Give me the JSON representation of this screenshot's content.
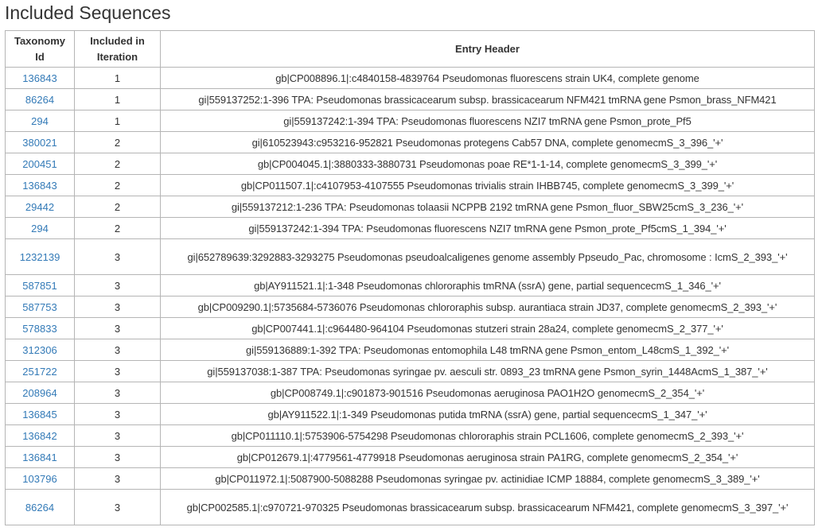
{
  "page": {
    "title": "Included Sequences"
  },
  "table": {
    "columns": {
      "taxonomy_line1": "Taxonomy",
      "taxonomy_line2": "Id",
      "included_line1": "Included in",
      "included_line2": "Iteration",
      "entry_header": "Entry Header"
    },
    "rows": [
      {
        "tax_id": "136843",
        "iteration": "1",
        "header": "gb|CP008896.1|:c4840158-4839764 Pseudomonas fluorescens strain UK4, complete genome"
      },
      {
        "tax_id": "86264",
        "iteration": "1",
        "header": "gi|559137252:1-396 TPA: Pseudomonas brassicacearum subsp. brassicacearum NFM421 tmRNA gene Psmon_brass_NFM421"
      },
      {
        "tax_id": "294",
        "iteration": "1",
        "header": "gi|559137242:1-394 TPA: Pseudomonas fluorescens NZI7 tmRNA gene Psmon_prote_Pf5"
      },
      {
        "tax_id": "380021",
        "iteration": "2",
        "header": "gi|610523943:c953216-952821 Pseudomonas protegens Cab57 DNA, complete genomecmS_3_396_'+'"
      },
      {
        "tax_id": "200451",
        "iteration": "2",
        "header": "gb|CP004045.1|:3880333-3880731 Pseudomonas poae RE*1-1-14, complete genomecmS_3_399_'+'"
      },
      {
        "tax_id": "136843",
        "iteration": "2",
        "header": "gb|CP011507.1|:c4107953-4107555 Pseudomonas trivialis strain IHBB745, complete genomecmS_3_399_'+'"
      },
      {
        "tax_id": "29442",
        "iteration": "2",
        "header": "gi|559137212:1-236 TPA: Pseudomonas tolaasii NCPPB 2192 tmRNA gene Psmon_fluor_SBW25cmS_3_236_'+'"
      },
      {
        "tax_id": "294",
        "iteration": "2",
        "header": "gi|559137242:1-394 TPA: Pseudomonas fluorescens NZI7 tmRNA gene Psmon_prote_Pf5cmS_1_394_'+'"
      },
      {
        "tax_id": "1232139",
        "iteration": "3",
        "header": "gi|652789639:3292883-3293275 Pseudomonas pseudoalcaligenes genome assembly Ppseudo_Pac, chromosome : IcmS_2_393_'+'",
        "tall": true
      },
      {
        "tax_id": "587851",
        "iteration": "3",
        "header": "gb|AY911521.1|:1-348 Pseudomonas chlororaphis tmRNA (ssrA) gene, partial sequencecmS_1_346_'+'"
      },
      {
        "tax_id": "587753",
        "iteration": "3",
        "header": "gb|CP009290.1|:5735684-5736076 Pseudomonas chlororaphis subsp. aurantiaca strain JD37, complete genomecmS_2_393_'+'"
      },
      {
        "tax_id": "578833",
        "iteration": "3",
        "header": "gb|CP007441.1|:c964480-964104 Pseudomonas stutzeri strain 28a24, complete genomecmS_2_377_'+'"
      },
      {
        "tax_id": "312306",
        "iteration": "3",
        "header": "gi|559136889:1-392 TPA: Pseudomonas entomophila L48 tmRNA gene Psmon_entom_L48cmS_1_392_'+'"
      },
      {
        "tax_id": "251722",
        "iteration": "3",
        "header": "gi|559137038:1-387 TPA: Pseudomonas syringae pv. aesculi str. 0893_23 tmRNA gene Psmon_syrin_1448AcmS_1_387_'+'"
      },
      {
        "tax_id": "208964",
        "iteration": "3",
        "header": "gb|CP008749.1|:c901873-901516 Pseudomonas aeruginosa PAO1H2O genomecmS_2_354_'+'"
      },
      {
        "tax_id": "136845",
        "iteration": "3",
        "header": "gb|AY911522.1|:1-349 Pseudomonas putida tmRNA (ssrA) gene, partial sequencecmS_1_347_'+'"
      },
      {
        "tax_id": "136842",
        "iteration": "3",
        "header": "gb|CP011110.1|:5753906-5754298 Pseudomonas chlororaphis strain PCL1606, complete genomecmS_2_393_'+'"
      },
      {
        "tax_id": "136841",
        "iteration": "3",
        "header": "gb|CP012679.1|:4779561-4779918 Pseudomonas aeruginosa strain PA1RG, complete genomecmS_2_354_'+'"
      },
      {
        "tax_id": "103796",
        "iteration": "3",
        "header": "gb|CP011972.1|:5087900-5088288 Pseudomonas syringae pv. actinidiae ICMP 18884, complete genomecmS_3_389_'+'"
      },
      {
        "tax_id": "86264",
        "iteration": "3",
        "header": "gb|CP002585.1|:c970721-970325 Pseudomonas brassicacearum subsp. brassicacearum NFM421, complete genomecmS_3_397_'+'",
        "tall": true
      }
    ]
  },
  "colors": {
    "link": "#337ab7",
    "text": "#333333",
    "border": "#b5b5b5"
  }
}
